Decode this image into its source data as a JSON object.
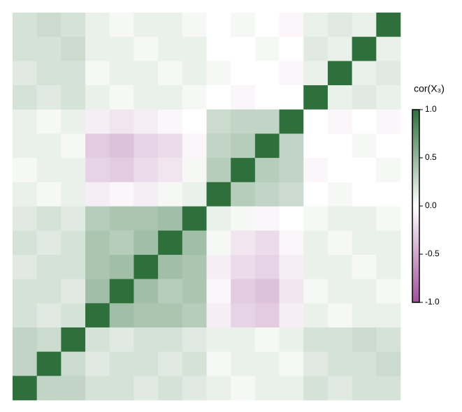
{
  "chart_data": {
    "type": "heatmap",
    "legend_title": "cor(X₃)",
    "matrix": [
      [
        0.2,
        0.25,
        0.2,
        0.1,
        0.05,
        0.1,
        0.1,
        0.05,
        0,
        0.05,
        0,
        -0.05,
        0.1,
        0.15,
        0.1,
        1
      ],
      [
        0.2,
        0.2,
        0.25,
        0.1,
        0.1,
        0.05,
        0.1,
        0.1,
        0,
        0,
        0.05,
        0,
        0.15,
        0.1,
        1,
        0.1
      ],
      [
        0.15,
        0.2,
        0.2,
        0.05,
        0.1,
        0.1,
        0.05,
        0.1,
        0.05,
        0,
        0,
        -0.05,
        0.1,
        1,
        0.1,
        0.15
      ],
      [
        0.2,
        0.15,
        0.2,
        0.1,
        0.05,
        0.1,
        0.1,
        0.05,
        0,
        -0.05,
        0,
        0,
        1,
        0.1,
        0.15,
        0.1
      ],
      [
        0.1,
        0.05,
        0.1,
        -0.1,
        -0.15,
        -0.1,
        -0.05,
        0,
        0.25,
        0.3,
        0.3,
        1,
        0,
        -0.05,
        0,
        -0.05
      ],
      [
        0.1,
        0.1,
        0.05,
        -0.3,
        -0.35,
        -0.25,
        -0.2,
        -0.05,
        0.3,
        0.35,
        1,
        0.3,
        0,
        0,
        0.05,
        0
      ],
      [
        0.05,
        0.1,
        0.1,
        -0.25,
        -0.3,
        -0.2,
        -0.15,
        0.05,
        0.35,
        1,
        0.35,
        0.3,
        -0.05,
        0,
        0,
        0.05
      ],
      [
        0.1,
        0.05,
        0.1,
        -0.1,
        -0.05,
        -0.1,
        0.05,
        0.1,
        1,
        0.35,
        0.3,
        0.25,
        0,
        0.05,
        0,
        0
      ],
      [
        0.15,
        0.2,
        0.15,
        0.35,
        0.4,
        0.4,
        0.45,
        1,
        0.1,
        0.05,
        -0.05,
        0,
        0.05,
        0.1,
        0.1,
        0.05
      ],
      [
        0.2,
        0.15,
        0.2,
        0.4,
        0.35,
        0.45,
        1,
        0.45,
        0.05,
        -0.15,
        -0.2,
        -0.05,
        0.1,
        0.05,
        0.1,
        0.1
      ],
      [
        0.15,
        0.2,
        0.2,
        0.4,
        0.45,
        1,
        0.45,
        0.4,
        -0.1,
        -0.2,
        -0.25,
        -0.1,
        0.1,
        0.1,
        0.05,
        0.1
      ],
      [
        0.2,
        0.2,
        0.15,
        0.45,
        1,
        0.45,
        0.35,
        0.4,
        -0.05,
        -0.3,
        -0.35,
        -0.15,
        0.05,
        0.1,
        0.1,
        0.05
      ],
      [
        0.2,
        0.15,
        0.2,
        1,
        0.45,
        0.4,
        0.4,
        0.35,
        -0.1,
        -0.25,
        -0.3,
        -0.1,
        0.1,
        0.05,
        0.1,
        0.1
      ],
      [
        0.3,
        0.25,
        1,
        0.2,
        0.15,
        0.2,
        0.2,
        0.15,
        0.1,
        0.1,
        0.05,
        0.1,
        0.2,
        0.2,
        0.25,
        0.2
      ],
      [
        0.3,
        1,
        0.25,
        0.15,
        0.2,
        0.2,
        0.15,
        0.2,
        0.05,
        0.1,
        0.1,
        0.05,
        0.15,
        0.2,
        0.2,
        0.25
      ],
      [
        1,
        0.3,
        0.3,
        0.2,
        0.2,
        0.15,
        0.2,
        0.15,
        0.1,
        0.05,
        0.1,
        0.1,
        0.2,
        0.15,
        0.2,
        0.2
      ]
    ],
    "colors": {
      "low": "#a0509a",
      "mid": "#ffffff",
      "high": "#2f6f3c"
    },
    "clim": [
      -1,
      1
    ],
    "cticks": [
      {
        "value": 1,
        "label": "1.0"
      },
      {
        "value": 0.5,
        "label": "0.5"
      },
      {
        "value": 0,
        "label": "0.0"
      },
      {
        "value": -0.5,
        "label": "-0.5"
      },
      {
        "value": -1,
        "label": "-1.0"
      }
    ]
  }
}
